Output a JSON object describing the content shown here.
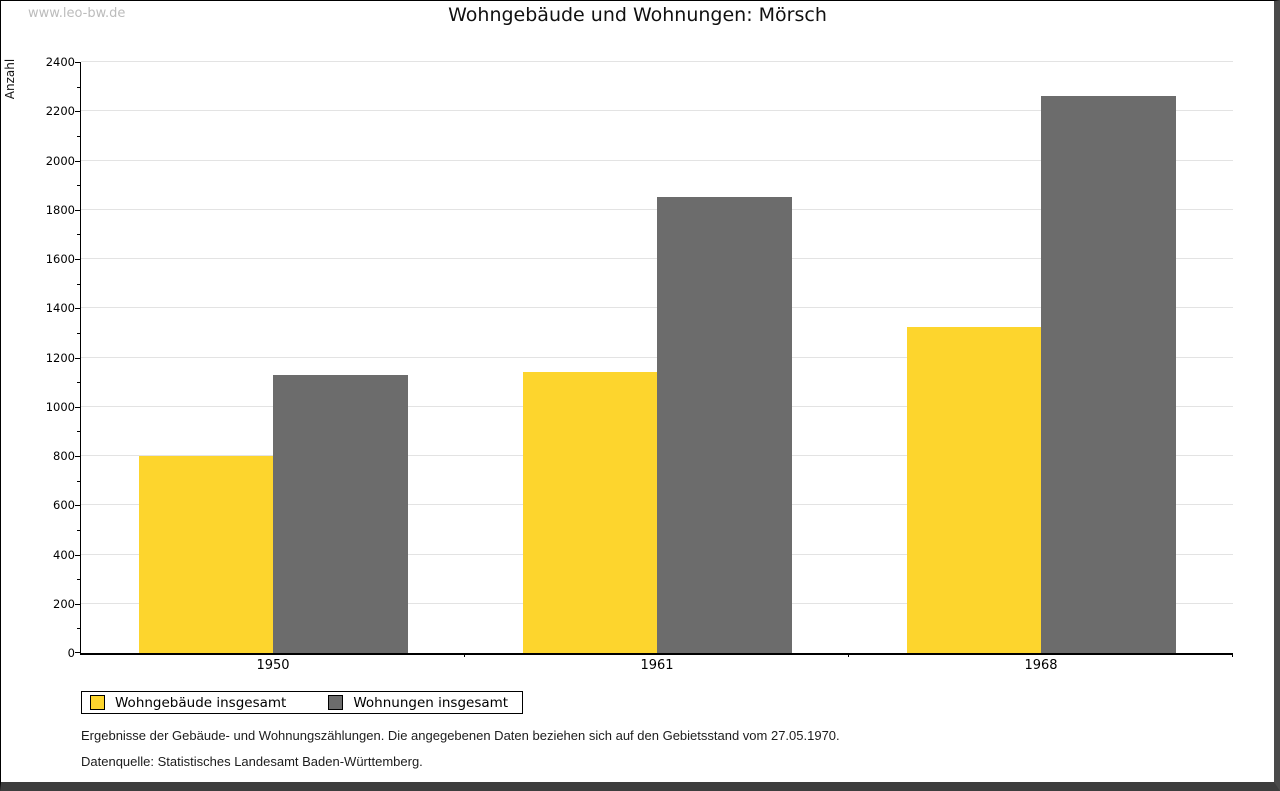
{
  "watermark": "www.leo-bw.de",
  "header": {
    "title": "Wohngebäude und Wohnungen: Mörsch"
  },
  "chart_data": {
    "type": "bar",
    "title": "Wohngebäude und Wohnungen: Mörsch",
    "xlabel": "",
    "ylabel": "Anzahl",
    "categories": [
      "1950",
      "1961",
      "1968"
    ],
    "series": [
      {
        "name": "Wohngebäude insgesamt",
        "color": "#FDD52D",
        "values": [
          800,
          1140,
          1325
        ]
      },
      {
        "name": "Wohnungen insgesamt",
        "color": "#6C6C6C",
        "values": [
          1130,
          1850,
          2260
        ]
      }
    ],
    "ylim": [
      0,
      2400
    ],
    "ytick_step": 200,
    "ytick_minor_step": 100,
    "grid": true,
    "legend_position": "bottom-left"
  },
  "footer": {
    "line1": "Ergebnisse der Gebäude- und Wohnungszählungen. Die angegebenen Daten beziehen sich auf den Gebietsstand vom 27.05.1970.",
    "line2": "Datenquelle: Statistisches Landesamt Baden-Württemberg."
  },
  "colors": {
    "series1": "#FDD52D",
    "series2": "#6C6C6C",
    "gridline": "#e3e3e3",
    "watermark": "#bcbcbc",
    "frame_shadow": "#4a4a4a"
  }
}
